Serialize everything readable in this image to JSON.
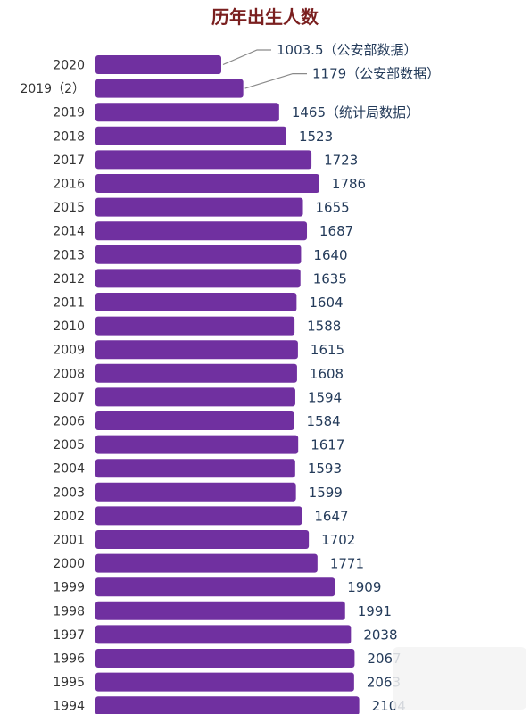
{
  "chart_data": {
    "type": "bar",
    "orientation": "horizontal",
    "title": "历年出生人数",
    "categories": [
      "2020",
      "2019（2）",
      "2019",
      "2018",
      "2017",
      "2016",
      "2015",
      "2014",
      "2013",
      "2012",
      "2011",
      "2010",
      "2009",
      "2008",
      "2007",
      "2006",
      "2005",
      "2004",
      "2003",
      "2002",
      "2001",
      "2000",
      "1999",
      "1998",
      "1997",
      "1996",
      "1995",
      "1994"
    ],
    "values": [
      1003.5,
      1179,
      1465,
      1523,
      1723,
      1786,
      1655,
      1687,
      1640,
      1635,
      1604,
      1588,
      1615,
      1608,
      1594,
      1584,
      1617,
      1593,
      1599,
      1647,
      1702,
      1771,
      1909,
      1991,
      2038,
      2067,
      2063,
      2104
    ],
    "data_labels": [
      "1003.5（公安部数据）",
      "1179（公安部数据）",
      "1465（统计局数据）",
      "1523",
      "1723",
      "1786",
      "1655",
      "1687",
      "1640",
      "1635",
      "1604",
      "1588",
      "1615",
      "1608",
      "1594",
      "1584",
      "1617",
      "1593",
      "1599",
      "1647",
      "1702",
      "1771",
      "1909",
      "1991",
      "2038",
      "2067",
      "2063",
      "2104"
    ],
    "color": "#7030a0",
    "xlabel": "",
    "ylabel": "",
    "grid": false,
    "legend": "none"
  }
}
